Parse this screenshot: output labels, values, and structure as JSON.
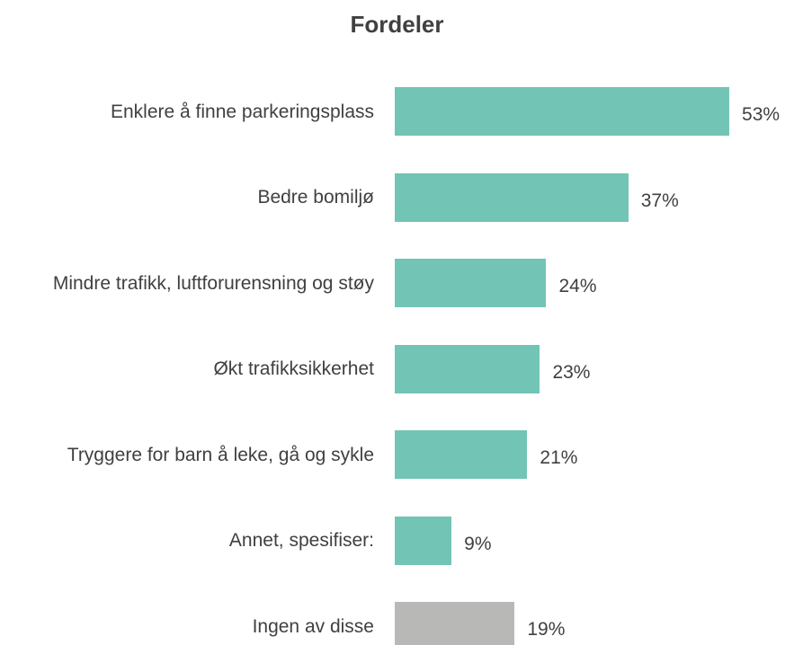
{
  "chart_data": {
    "type": "barh",
    "title": "Fordeler",
    "categories": [
      "Enklere å finne parkeringsplass",
      "Bedre bomiljø",
      "Mindre trafikk, luftforurensning og støy",
      "Økt trafikksikkerhet",
      "Tryggere for barn å leke, gå og sykle",
      "Annet, spesifiser:",
      "Ingen av disse"
    ],
    "values": [
      53,
      37,
      24,
      23,
      21,
      9,
      19
    ],
    "value_labels": [
      "53%",
      "37%",
      "24%",
      "23%",
      "21%",
      "9%",
      "19%"
    ],
    "colors": [
      "#72c4b4",
      "#72c4b4",
      "#72c4b4",
      "#72c4b4",
      "#72c4b4",
      "#72c4b4",
      "#b8b9b6"
    ]
  }
}
